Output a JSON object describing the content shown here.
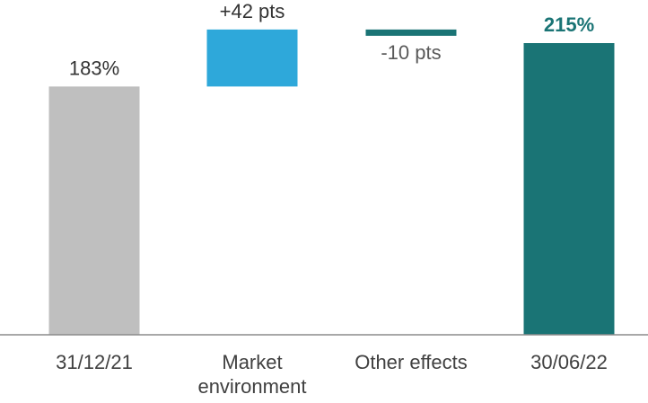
{
  "chart_data": {
    "type": "bar",
    "subtype": "waterfall",
    "categories": [
      [
        "31/12/21"
      ],
      [
        "Market",
        "environment"
      ],
      [
        "Other effects"
      ],
      [
        "30/06/22"
      ]
    ],
    "steps": [
      {
        "kind": "total",
        "value": 183,
        "label": "183%"
      },
      {
        "kind": "delta",
        "value": 42,
        "label": "+42 pts"
      },
      {
        "kind": "delta",
        "value": -10,
        "label": "-10 pts"
      },
      {
        "kind": "total",
        "value": 215,
        "label": "215%"
      }
    ],
    "ylim": [
      0,
      240
    ],
    "unit": "%",
    "grid": false,
    "legend": "none",
    "colors": {
      "start_total": "#BFBFBF",
      "increase": "#2EA8DA",
      "decrease": "#1A7475",
      "end_total": "#1A7475",
      "end_label": "#1A7475",
      "axis": "#8C8C8C"
    }
  }
}
